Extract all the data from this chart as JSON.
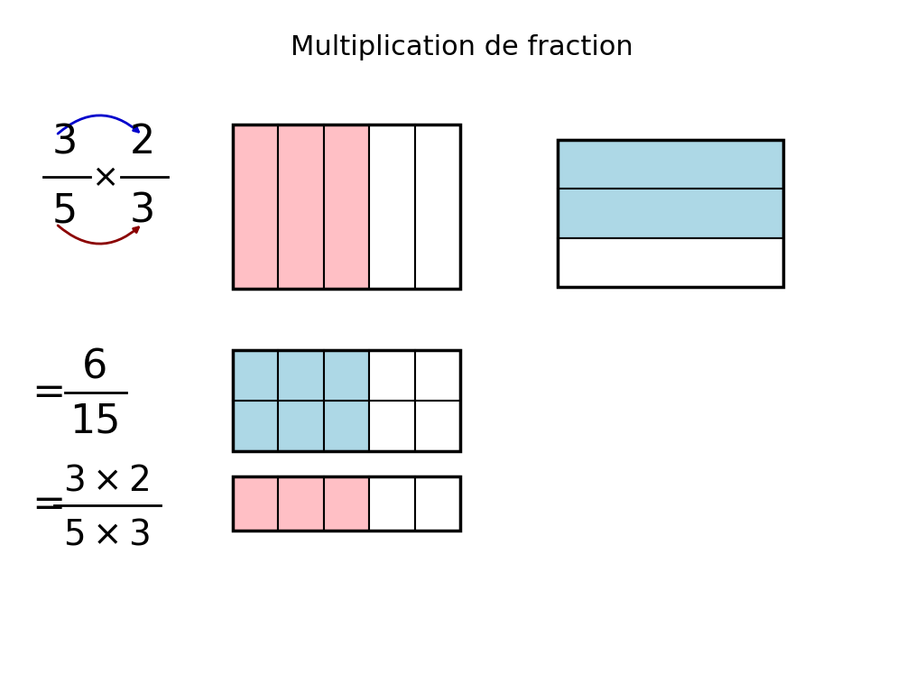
{
  "title": "Multiplication de fraction",
  "title_fontsize": 22,
  "pink_color": "#FFBFC5",
  "blue_color": "#ADD8E6",
  "white_color": "#FFFFFF",
  "black_color": "#000000",
  "blue_arrow_color": "#0000CC",
  "red_arrow_color": "#8B0000",
  "fig_width": 10.24,
  "fig_height": 7.68,
  "dpi": 100
}
